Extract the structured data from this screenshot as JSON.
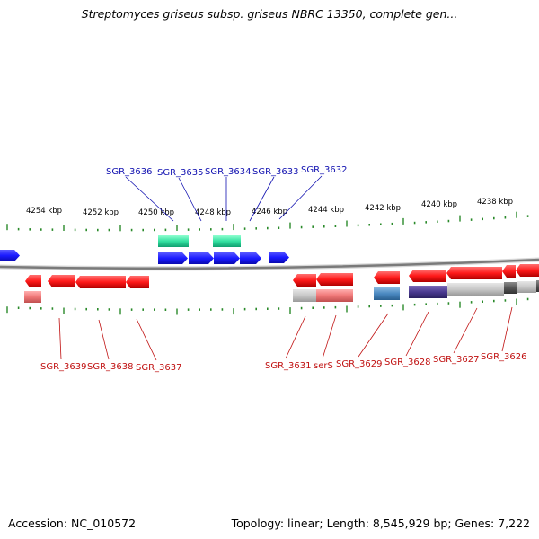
{
  "title": "Streptomyces griseus subsp. griseus NBRC 13350, complete gen...",
  "footer": {
    "accession": "Accession: NC_010572",
    "topology": "Topology: linear; Length: 8,545,929 bp; Genes: 7,222"
  },
  "colors": {
    "forward_gene": "#1a1aff",
    "reverse_gene": "#ff1a1a",
    "rna_feature": "#33e0a0",
    "label_top": "#1010b0",
    "label_bottom": "#c01010",
    "tick": "#2a8a2a",
    "backbone": "#888888"
  },
  "scale_labels": [
    "4254 kbp",
    "4252 kbp",
    "4250 kbp",
    "4248 kbp",
    "4246 kbp",
    "4244 kbp",
    "4242 kbp",
    "4240 kbp",
    "4238 kbp"
  ],
  "genes_top": [
    "SGR_3636",
    "SGR_3635",
    "SGR_3634",
    "SGR_3633",
    "SGR_3632"
  ],
  "genes_bottom": [
    "SGR_3639",
    "SGR_3638",
    "SGR_3637",
    "SGR_3631",
    "serS",
    "SGR_3629",
    "SGR_3628",
    "SGR_3627",
    "SGR_3626"
  ]
}
